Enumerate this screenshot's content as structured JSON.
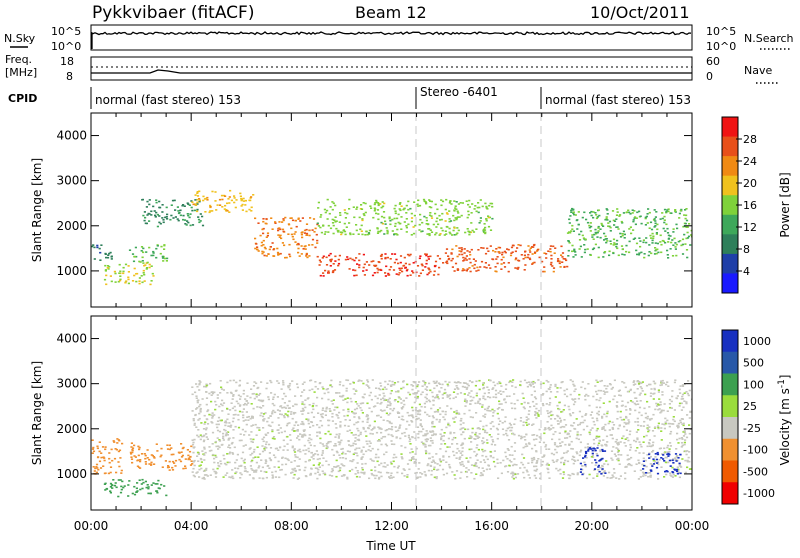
{
  "header": {
    "station": "Pykkvibaer (fitACF)",
    "beam": "Beam 12",
    "date": "10/Oct/2011"
  },
  "strip_labels": {
    "nsky": "N.Sky",
    "nsky_ticks": [
      "10^5",
      "10^0"
    ],
    "nsearch": "N.Search",
    "nsearch_ticks": [
      "10^5",
      "10^0"
    ],
    "freq_line1": "Freq.",
    "freq_line2": "[MHz]",
    "freq_ticks": [
      "18",
      "8"
    ],
    "nave": "Nave",
    "nave_ticks": [
      "60",
      "0"
    ],
    "cpid": "CPID"
  },
  "cpid_segments": [
    {
      "label": "normal (fast stereo) 153",
      "start_hour": 0
    },
    {
      "label": "Stereo -6401",
      "start_hour": 13
    },
    {
      "label": "normal (fast stereo) 153",
      "start_hour": 18
    }
  ],
  "time_axis": {
    "title": "Time UT",
    "ticks": [
      "00:00",
      "04:00",
      "08:00",
      "12:00",
      "16:00",
      "20:00",
      "00:00"
    ]
  },
  "colors": {
    "power": [
      "#1a1aff",
      "#1f3fa8",
      "#2e7f5a",
      "#3ea85a",
      "#7fd23a",
      "#f0c21e",
      "#f08a14",
      "#e8501a",
      "#f01414"
    ],
    "velocity": [
      "#f00000",
      "#f05a00",
      "#f09030",
      "#c8c8c0",
      "#9adc3c",
      "#3ca050",
      "#2858a8",
      "#1830c0"
    ]
  },
  "chart_data": [
    {
      "type": "heatmap",
      "title": "",
      "xlabel": "Time UT",
      "ylabel": "Slant Range [km]",
      "x_unit": "hour UT",
      "xlim": [
        0,
        24
      ],
      "ylim": [
        200,
        4500
      ],
      "yticks": [
        1000,
        2000,
        3000,
        4000
      ],
      "colorbar": {
        "label": "Power [dB]",
        "ticks": [
          4,
          8,
          12,
          16,
          20,
          24,
          28
        ],
        "range": [
          0,
          32
        ]
      },
      "regions": [
        {
          "t": [
            0.0,
            0.8
          ],
          "range": [
            1200,
            1600
          ],
          "value": 8
        },
        {
          "t": [
            0.5,
            2.5
          ],
          "range": [
            700,
            1200
          ],
          "value": 18
        },
        {
          "t": [
            1.5,
            3.0
          ],
          "range": [
            1200,
            1600
          ],
          "value": 14
        },
        {
          "t": [
            2.0,
            4.5
          ],
          "range": [
            2000,
            2600
          ],
          "value": 10
        },
        {
          "t": [
            4.0,
            6.5
          ],
          "range": [
            2300,
            2800
          ],
          "value": 20
        },
        {
          "t": [
            6.5,
            9.0
          ],
          "range": [
            1300,
            2200
          ],
          "value": 24
        },
        {
          "t": [
            9.0,
            14.0
          ],
          "range": [
            900,
            1400
          ],
          "value": 28
        },
        {
          "t": [
            9.0,
            16.0
          ],
          "range": [
            1800,
            2600
          ],
          "value": 16
        },
        {
          "t": [
            14.0,
            19.0
          ],
          "range": [
            1000,
            1600
          ],
          "value": 26
        },
        {
          "t": [
            19.0,
            24.0
          ],
          "range": [
            1300,
            2400
          ],
          "value": 14
        }
      ]
    },
    {
      "type": "heatmap",
      "title": "",
      "xlabel": "Time UT",
      "ylabel": "Slant Range [km]",
      "x_unit": "hour UT",
      "xlim": [
        0,
        24
      ],
      "ylim": [
        200,
        4500
      ],
      "yticks": [
        1000,
        2000,
        3000,
        4000
      ],
      "colorbar": {
        "label": "Velocity [m s^-1]",
        "ticks": [
          1000,
          500,
          100,
          25,
          -25,
          -100,
          -500,
          -1000
        ]
      },
      "regions": [
        {
          "t": [
            0.0,
            1.2
          ],
          "range": [
            1000,
            1800
          ],
          "value": -150
        },
        {
          "t": [
            0.5,
            3.0
          ],
          "range": [
            500,
            900
          ],
          "value": 80
        },
        {
          "t": [
            1.5,
            4.0
          ],
          "range": [
            1100,
            1700
          ],
          "value": -200
        },
        {
          "t": [
            4.0,
            24.0
          ],
          "range": [
            900,
            3100
          ],
          "value": 0
        },
        {
          "t": [
            19.5,
            20.5
          ],
          "range": [
            1000,
            1600
          ],
          "value": 600
        },
        {
          "t": [
            22.0,
            23.5
          ],
          "range": [
            1000,
            1500
          ],
          "value": 800
        }
      ]
    }
  ]
}
